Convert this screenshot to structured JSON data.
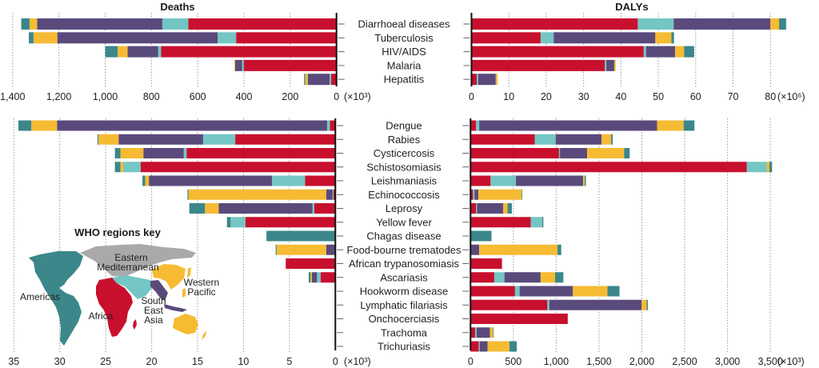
{
  "chart_data": [
    {
      "id": "deaths-major",
      "type": "bar",
      "orientation": "horizontal-stacked",
      "direction": "right-to-left",
      "title": "Deaths",
      "unit_label": "(×10³)",
      "xlim": [
        0,
        1400
      ],
      "ticks": [
        0,
        200,
        400,
        600,
        800,
        1000,
        1200,
        1400
      ],
      "tick_labels": [
        "0",
        "200",
        "400",
        "600",
        "800",
        "1,000",
        "1,200",
        "1,400"
      ],
      "grid": true,
      "categories": [
        "Diarrhoeal diseases",
        "Tuberculosis",
        "HIV/AIDS",
        "Malaria",
        "Hepatitis"
      ],
      "series": [
        {
          "name": "Africa",
          "values": [
            641,
            434,
            758,
            401,
            23
          ]
        },
        {
          "name": "Eastern Mediterranean",
          "values": [
            112,
            80,
            13,
            7,
            7
          ]
        },
        {
          "name": "South East Asia",
          "values": [
            541,
            693,
            132,
            30,
            94
          ]
        },
        {
          "name": "Western Pacific",
          "values": [
            33,
            103,
            43,
            3,
            11
          ]
        },
        {
          "name": "Americas",
          "values": [
            36,
            20,
            54,
            0,
            5
          ]
        }
      ]
    },
    {
      "id": "dalys-major",
      "type": "bar",
      "orientation": "horizontal-stacked",
      "direction": "left-to-right",
      "title": "DALYs",
      "unit_label": "(×10⁶)",
      "xlim": [
        0,
        80
      ],
      "ticks": [
        0,
        10,
        20,
        30,
        40,
        50,
        60,
        70,
        80
      ],
      "tick_labels": [
        "0",
        "10",
        "20",
        "30",
        "40",
        "50",
        "60",
        "70",
        "80"
      ],
      "grid": true,
      "categories": [
        "Diarrhoeal diseases",
        "Tuberculosis",
        "HIV/AIDS",
        "Malaria",
        "Hepatitis"
      ],
      "series": [
        {
          "name": "Africa",
          "values": [
            44.5,
            18.5,
            46.1,
            35.7,
            1.4
          ]
        },
        {
          "name": "Eastern Mediterranean",
          "values": [
            9.6,
            3.5,
            0.6,
            0.4,
            0.4
          ]
        },
        {
          "name": "South East Asia",
          "values": [
            25.9,
            27.2,
            7.8,
            2.1,
            4.7
          ]
        },
        {
          "name": "Western Pacific",
          "values": [
            2.3,
            4.3,
            2.4,
            0.4,
            0.5
          ]
        },
        {
          "name": "Americas",
          "values": [
            1.9,
            0.7,
            2.7,
            0.0,
            0.0
          ]
        }
      ]
    },
    {
      "id": "deaths-ntd",
      "type": "bar",
      "orientation": "horizontal-stacked",
      "direction": "right-to-left",
      "unit_label": "(×10³)",
      "xlim": [
        0,
        35
      ],
      "ticks": [
        0,
        5,
        10,
        15,
        20,
        25,
        30,
        35
      ],
      "tick_labels": [
        "0",
        "5",
        "10",
        "15",
        "20",
        "25",
        "30",
        "35"
      ],
      "grid": true,
      "categories": [
        "Dengue",
        "Rabies",
        "Cysticercosis",
        "Schistosomiasis",
        "Leishmaniasis",
        "Echinococcosis",
        "Leprosy",
        "Yellow fever",
        "Chagas disease",
        "Food-bourne trematodes",
        "African trypanosomiasis",
        "Ascariasis",
        "Hookworm disease",
        "Lymphatic filariasis",
        "Onchocerciasis",
        "Trachoma",
        "Trichuriasis"
      ],
      "series": [
        {
          "name": "Africa",
          "values": [
            0.6,
            10.9,
            16.2,
            21.2,
            3.3,
            0.2,
            2.3,
            9.8,
            0,
            0,
            5.4,
            1.6,
            0,
            0,
            0,
            0,
            0
          ]
        },
        {
          "name": "Eastern Mediterranean",
          "values": [
            0.3,
            3.5,
            0.3,
            1.9,
            3.6,
            0.1,
            0.2,
            1.6,
            0,
            0,
            0,
            0.4,
            0,
            0,
            0,
            0,
            0
          ]
        },
        {
          "name": "South East Asia",
          "values": [
            29.4,
            9.2,
            4.4,
            0,
            13.4,
            0.7,
            10.2,
            0,
            0,
            1.0,
            0,
            0.55,
            0,
            0,
            0,
            0,
            0
          ]
        },
        {
          "name": "Western Pacific",
          "values": [
            2.8,
            2.2,
            2.5,
            0.3,
            0.4,
            15.0,
            1.5,
            0,
            0,
            5.4,
            0,
            0.15,
            0,
            0,
            0,
            0,
            0
          ]
        },
        {
          "name": "Americas",
          "values": [
            1.4,
            0.1,
            0.6,
            0.6,
            0.3,
            0.1,
            1.7,
            0.4,
            7.5,
            0.1,
            0,
            0.2,
            0,
            0,
            0,
            0,
            0
          ]
        }
      ]
    },
    {
      "id": "dalys-ntd",
      "type": "bar",
      "orientation": "horizontal-stacked",
      "direction": "left-to-right",
      "unit_label": "(×10³)",
      "xlim": [
        0,
        3500
      ],
      "ticks": [
        0,
        500,
        1000,
        1500,
        2000,
        2500,
        3000,
        3500
      ],
      "tick_labels": [
        "0",
        "500",
        "1,000",
        "1,500",
        "2,000",
        "2,500",
        "3,000",
        "3,500"
      ],
      "grid": true,
      "categories": [
        "Dengue",
        "Rabies",
        "Cysticercosis",
        "Schistosomiasis",
        "Leishmaniasis",
        "Echinococcosis",
        "Leprosy",
        "Yellow fever",
        "Chagas disease",
        "Food-bourne trematodes",
        "African trypanosomiasis",
        "Ascariasis",
        "Hookworm disease",
        "Lymphatic filariasis",
        "Onchocerciasis",
        "Trachoma",
        "Trichuriasis"
      ],
      "series": [
        {
          "name": "Africa",
          "values": [
            65,
            749,
            1033,
            3226,
            234,
            29,
            65,
            703,
            0,
            0,
            367,
            277,
            519,
            897,
            1135,
            54,
            97
          ]
        },
        {
          "name": "Eastern Mediterranean",
          "values": [
            36,
            245,
            11,
            234,
            296,
            18,
            11,
            133,
            0,
            0,
            0,
            119,
            54,
            22,
            0,
            18,
            11
          ]
        },
        {
          "name": "South East Asia",
          "values": [
            2077,
            536,
            317,
            0,
            785,
            43,
            306,
            0,
            0,
            101,
            0,
            422,
            622,
            1079,
            0,
            155,
            90
          ]
        },
        {
          "name": "Western Pacific",
          "values": [
            310,
            112,
            432,
            29,
            18,
            508,
            50,
            0,
            0,
            915,
            0,
            169,
            404,
            58,
            0,
            36,
            256
          ]
        },
        {
          "name": "Americas",
          "values": [
            126,
            18,
            65,
            31,
            14,
            7,
            51,
            14,
            245,
            43,
            0,
            97,
            140,
            14,
            0,
            7,
            86
          ]
        }
      ]
    }
  ],
  "colors": {
    "Africa": "#c8102e",
    "Eastern Mediterranean": "#74c6c4",
    "South East Asia": "#5a4a7c",
    "Western Pacific": "#f6bb33",
    "Americas": "#3b878a",
    "Europe": "#a9a9a9"
  },
  "legend": {
    "title": "WHO regions key",
    "labels": {
      "americas": "Americas",
      "africa": "Africa",
      "eastern_med_1": "Eastern",
      "eastern_med_2": "Mediterranean",
      "sea_1": "South",
      "sea_2": "East",
      "sea_3": "Asia",
      "wp_1": "Western",
      "wp_2": "Pacific"
    }
  }
}
